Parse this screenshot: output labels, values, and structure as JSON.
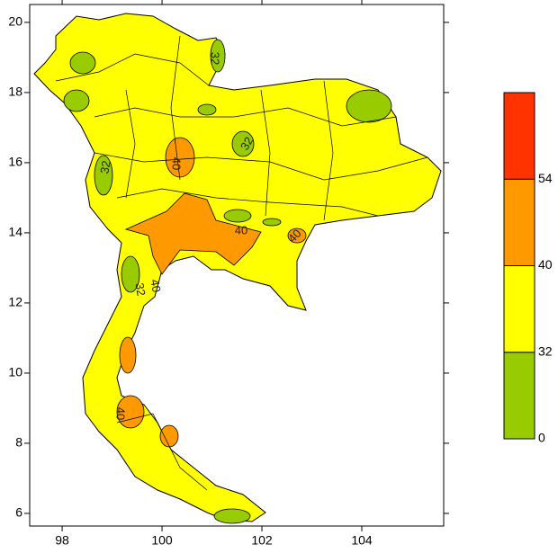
{
  "map": {
    "xlim": [
      97.35,
      105.64
    ],
    "ylim": [
      5.64,
      20.51
    ],
    "xticks": [
      98,
      100,
      102,
      104
    ],
    "yticks": [
      6,
      8,
      10,
      12,
      14,
      16,
      18,
      20
    ],
    "contour_labels": [
      "32",
      "40",
      "32",
      "32",
      "40",
      "40",
      "40",
      "32",
      "40"
    ]
  },
  "colorbar": {
    "levels": [
      0,
      32,
      40,
      54
    ],
    "colors": [
      "#99cc00",
      "#ffff00",
      "#ff9900",
      "#ff3300"
    ]
  }
}
